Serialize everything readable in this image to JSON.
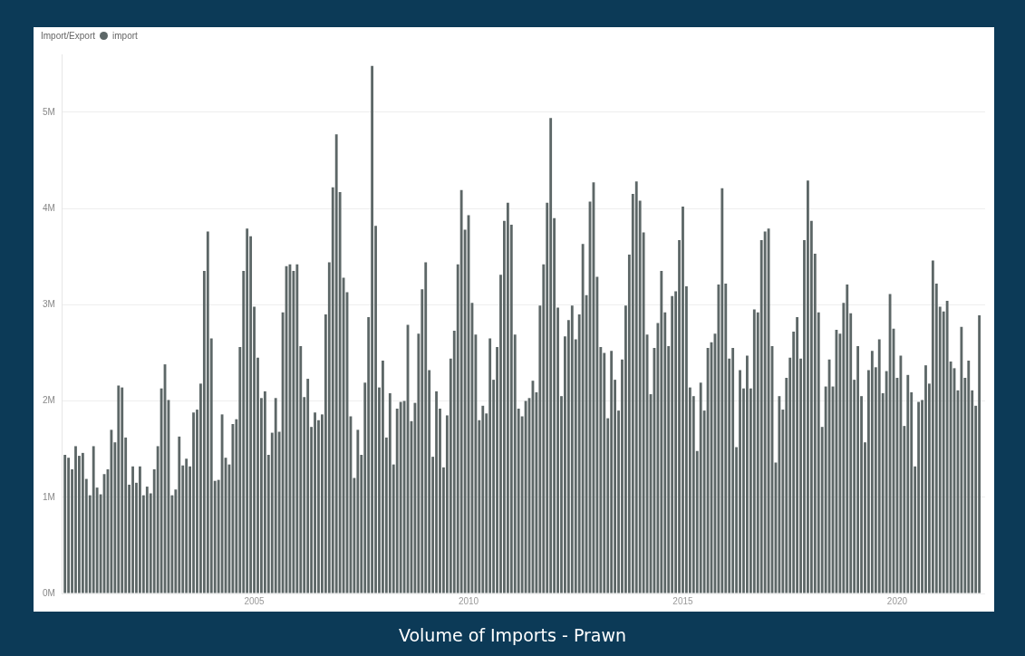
{
  "chart_data": {
    "type": "bar",
    "title": "Volume of Imports - Prawn",
    "legend_title": "Import/Export",
    "legend": "top left",
    "grid": "y",
    "xlim": [
      "2000-07-10",
      "2022-01-20"
    ],
    "xticks": [
      "2005",
      "2010",
      "2015",
      "2020"
    ],
    "ylim": [
      0,
      5.6
    ],
    "yticks": [
      {
        "value": 0,
        "label": "0M"
      },
      {
        "value": 1,
        "label": "1M"
      },
      {
        "value": 2,
        "label": "2M"
      },
      {
        "value": 3,
        "label": "3M"
      },
      {
        "value": 4,
        "label": "4M"
      },
      {
        "value": 5,
        "label": "5M"
      }
    ],
    "x": [
      "2000-08",
      "2000-09",
      "2000-10",
      "2000-11",
      "2000-12",
      "2001-01",
      "2001-02",
      "2001-03",
      "2001-04",
      "2001-05",
      "2001-06",
      "2001-07",
      "2001-08",
      "2001-09",
      "2001-10",
      "2001-11",
      "2001-12",
      "2002-01",
      "2002-02",
      "2002-03",
      "2002-04",
      "2002-05",
      "2002-06",
      "2002-07",
      "2002-08",
      "2002-09",
      "2002-10",
      "2002-11",
      "2002-12",
      "2003-01",
      "2003-02",
      "2003-03",
      "2003-04",
      "2003-05",
      "2003-06",
      "2003-07",
      "2003-08",
      "2003-09",
      "2003-10",
      "2003-11",
      "2003-12",
      "2004-01",
      "2004-02",
      "2004-03",
      "2004-04",
      "2004-05",
      "2004-06",
      "2004-07",
      "2004-08",
      "2004-09",
      "2004-10",
      "2004-11",
      "2004-12",
      "2005-01",
      "2005-02",
      "2005-03",
      "2005-04",
      "2005-05",
      "2005-06",
      "2005-07",
      "2005-08",
      "2005-09",
      "2005-10",
      "2005-11",
      "2005-12",
      "2006-01",
      "2006-02",
      "2006-03",
      "2006-04",
      "2006-05",
      "2006-06",
      "2006-07",
      "2006-08",
      "2006-09",
      "2006-10",
      "2006-11",
      "2006-12",
      "2007-01",
      "2007-02",
      "2007-03",
      "2007-04",
      "2007-05",
      "2007-06",
      "2007-07",
      "2007-08",
      "2007-09",
      "2007-10",
      "2007-11",
      "2007-12",
      "2008-01",
      "2008-02",
      "2008-03",
      "2008-04",
      "2008-05",
      "2008-06",
      "2008-07",
      "2008-08",
      "2008-09",
      "2008-10",
      "2008-11",
      "2008-12",
      "2009-01",
      "2009-02",
      "2009-03",
      "2009-04",
      "2009-05",
      "2009-06",
      "2009-07",
      "2009-08",
      "2009-09",
      "2009-10",
      "2009-11",
      "2009-12",
      "2010-01",
      "2010-02",
      "2010-03",
      "2010-04",
      "2010-05",
      "2010-06",
      "2010-07",
      "2010-08",
      "2010-09",
      "2010-10",
      "2010-11",
      "2010-12",
      "2011-01",
      "2011-02",
      "2011-03",
      "2011-04",
      "2011-05",
      "2011-06",
      "2011-07",
      "2011-08",
      "2011-09",
      "2011-10",
      "2011-11",
      "2011-12",
      "2012-01",
      "2012-02",
      "2012-03",
      "2012-04",
      "2012-05",
      "2012-06",
      "2012-07",
      "2012-08",
      "2012-09",
      "2012-10",
      "2012-11",
      "2012-12",
      "2013-01",
      "2013-02",
      "2013-03",
      "2013-04",
      "2013-05",
      "2013-06",
      "2013-07",
      "2013-08",
      "2013-09",
      "2013-10",
      "2013-11",
      "2013-12",
      "2014-01",
      "2014-02",
      "2014-03",
      "2014-04",
      "2014-05",
      "2014-06",
      "2014-07",
      "2014-08",
      "2014-09",
      "2014-10",
      "2014-11",
      "2014-12",
      "2015-01",
      "2015-02",
      "2015-03",
      "2015-04",
      "2015-05",
      "2015-06",
      "2015-07",
      "2015-08",
      "2015-09",
      "2015-10",
      "2015-11",
      "2015-12",
      "2016-01",
      "2016-02",
      "2016-03",
      "2016-04",
      "2016-05",
      "2016-06",
      "2016-07",
      "2016-08",
      "2016-09",
      "2016-10",
      "2016-11",
      "2016-12",
      "2017-01",
      "2017-02",
      "2017-03",
      "2017-04",
      "2017-05",
      "2017-06",
      "2017-07",
      "2017-08",
      "2017-09",
      "2017-10",
      "2017-11",
      "2017-12",
      "2018-01",
      "2018-02",
      "2018-03",
      "2018-04",
      "2018-05",
      "2018-06",
      "2018-07",
      "2018-08",
      "2018-09",
      "2018-10",
      "2018-11",
      "2018-12",
      "2019-01",
      "2019-02",
      "2019-03",
      "2019-04",
      "2019-05",
      "2019-06",
      "2019-07",
      "2019-08",
      "2019-09",
      "2019-10",
      "2019-11",
      "2019-12",
      "2020-01",
      "2020-02",
      "2020-03",
      "2020-04",
      "2020-05",
      "2020-06",
      "2020-07",
      "2020-08",
      "2020-09",
      "2020-10",
      "2020-11",
      "2020-12",
      "2021-01",
      "2021-02",
      "2021-03",
      "2021-04",
      "2021-05",
      "2021-06",
      "2021-07",
      "2021-08",
      "2021-09",
      "2021-10",
      "2021-11",
      "2021-12"
    ],
    "series": [
      {
        "name": "import",
        "color": "#5d6767",
        "values": [
          1.44,
          1.41,
          1.29,
          1.53,
          1.43,
          1.46,
          1.19,
          1.02,
          1.53,
          1.1,
          1.03,
          1.24,
          1.29,
          1.7,
          1.57,
          2.16,
          2.14,
          1.62,
          1.13,
          1.32,
          1.15,
          1.32,
          1.02,
          1.11,
          1.04,
          1.29,
          1.53,
          2.13,
          2.38,
          2.01,
          1.02,
          1.08,
          1.63,
          1.33,
          1.4,
          1.32,
          1.88,
          1.91,
          2.18,
          3.35,
          3.76,
          2.65,
          1.17,
          1.18,
          1.86,
          1.41,
          1.34,
          1.76,
          1.81,
          2.56,
          3.35,
          3.79,
          3.71,
          2.98,
          2.45,
          2.03,
          2.1,
          1.44,
          1.67,
          2.03,
          1.68,
          2.92,
          3.4,
          3.42,
          3.35,
          3.42,
          2.57,
          2.04,
          2.23,
          1.73,
          1.88,
          1.8,
          1.86,
          2.9,
          3.44,
          4.22,
          4.77,
          4.17,
          3.28,
          3.13,
          1.84,
          1.2,
          1.7,
          1.44,
          2.19,
          2.87,
          5.48,
          3.82,
          2.14,
          2.42,
          1.62,
          2.08,
          1.34,
          1.92,
          1.99,
          2.0,
          2.79,
          1.79,
          1.98,
          2.7,
          3.16,
          3.44,
          2.32,
          1.42,
          2.1,
          1.92,
          1.31,
          1.85,
          2.44,
          2.73,
          3.42,
          4.19,
          3.78,
          3.93,
          3.02,
          2.69,
          1.8,
          1.95,
          1.87,
          2.65,
          2.22,
          2.56,
          3.31,
          3.87,
          4.06,
          3.83,
          2.69,
          1.92,
          1.84,
          2.0,
          2.03,
          2.21,
          2.09,
          2.99,
          3.42,
          4.06,
          4.94,
          3.9,
          2.97,
          2.05,
          2.67,
          2.84,
          2.99,
          2.64,
          2.9,
          3.63,
          3.1,
          4.07,
          4.27,
          3.29,
          2.56,
          2.5,
          1.82,
          2.52,
          2.22,
          1.9,
          2.43,
          2.99,
          3.52,
          4.15,
          4.28,
          4.08,
          3.75,
          2.69,
          2.07,
          2.55,
          2.81,
          3.35,
          2.92,
          2.57,
          3.09,
          3.14,
          3.67,
          4.02,
          3.19,
          2.14,
          2.05,
          1.48,
          2.19,
          1.9,
          2.55,
          2.61,
          2.7,
          3.21,
          4.21,
          3.22,
          2.44,
          2.55,
          1.52,
          2.32,
          2.13,
          2.47,
          2.13,
          2.95,
          2.92,
          3.67,
          3.76,
          3.79,
          2.57,
          1.36,
          2.05,
          1.91,
          2.24,
          2.45,
          2.72,
          2.87,
          2.44,
          3.67,
          4.29,
          3.87,
          3.53,
          2.92,
          1.73,
          2.15,
          2.43,
          2.15,
          2.74,
          2.7,
          3.02,
          3.21,
          2.91,
          2.22,
          2.57,
          2.05,
          1.57,
          2.32,
          2.52,
          2.35,
          2.64,
          2.08,
          2.31,
          3.11,
          2.75,
          2.24,
          2.47,
          1.74,
          2.27,
          2.09,
          1.32,
          1.99,
          2.01,
          2.37,
          2.18,
          3.46,
          3.22,
          2.98,
          2.93,
          3.04,
          2.41,
          2.34,
          2.11,
          2.77,
          2.24,
          2.42,
          2.11,
          1.95,
          2.89
        ]
      }
    ]
  }
}
